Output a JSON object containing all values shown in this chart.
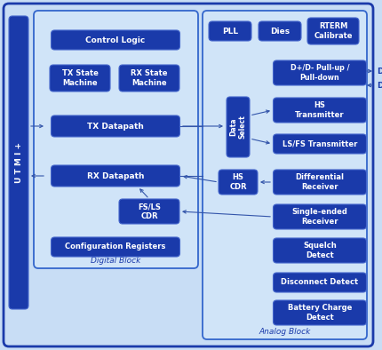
{
  "bg_color": "#c8ddf5",
  "outer_bg": "#c8ddf5",
  "digital_bg": "#d8e8f8",
  "analog_bg": "#d8e8f8",
  "block_fill": "#1a3aaa",
  "block_edge": "#4466cc",
  "block_text": "white",
  "label_color": "#1a3aaa",
  "arrow_color": "#3355aa",
  "utmi_fill": "#1a3aaa",
  "utmi_label": "U T M I +",
  "digital_label": "Digital Block",
  "analog_label": "Analog Block",
  "figw": 4.3,
  "figh": 3.94,
  "dpi": 100
}
